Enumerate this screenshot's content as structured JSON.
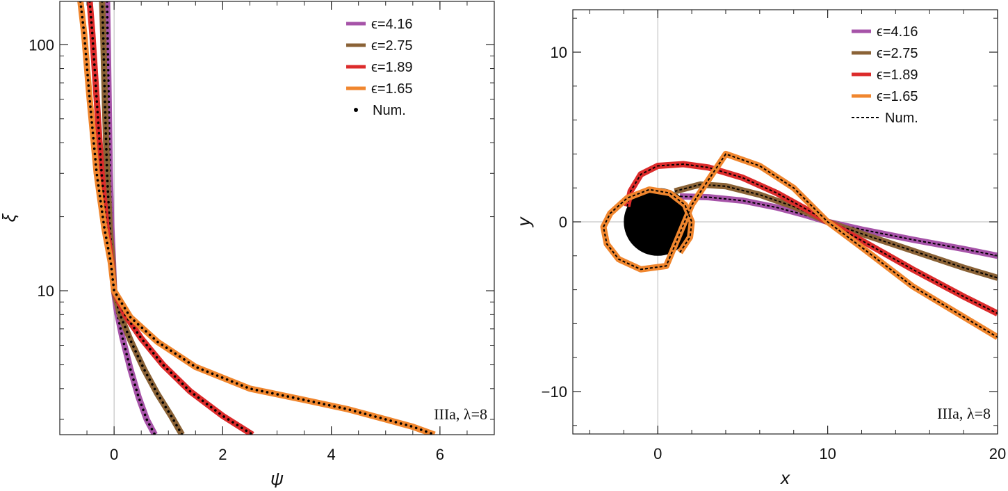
{
  "chart_data": [
    {
      "type": "line",
      "xlabel": "ψ",
      "ylabel": "ξ",
      "xlim": [
        -1,
        7
      ],
      "ylim": [
        2.6,
        150
      ],
      "yscale": "log",
      "x_ticks": [
        "0",
        "2",
        "4",
        "6"
      ],
      "y_ticks": [
        "10",
        "100"
      ],
      "legend_position": "top-right",
      "legend": [
        "ϵ=4.16",
        "ϵ=2.75",
        "ϵ=1.89",
        "ϵ=1.65",
        "Num."
      ],
      "annotation": "IIIa, λ=8",
      "series": [
        {
          "name": "ϵ=4.16",
          "color": "#a653a8",
          "x": [
            -0.13,
            -0.12,
            -0.1,
            -0.08,
            -0.05,
            -0.02,
            0,
            0.05,
            0.15,
            0.3,
            0.45,
            0.6,
            0.75
          ],
          "y": [
            150,
            110,
            60,
            30,
            18,
            13,
            10,
            8.3,
            6.5,
            4.8,
            3.7,
            3.0,
            2.6
          ]
        },
        {
          "name": "ϵ=2.75",
          "color": "#8a6236",
          "x": [
            -0.22,
            -0.2,
            -0.17,
            -0.13,
            -0.08,
            -0.03,
            0,
            0.1,
            0.3,
            0.55,
            0.8,
            1.05,
            1.25
          ],
          "y": [
            150,
            110,
            60,
            30,
            18,
            13,
            10,
            8.1,
            6.3,
            4.8,
            3.8,
            3.1,
            2.6
          ]
        },
        {
          "name": "ϵ=1.89",
          "color": "#dc2b2b",
          "x": [
            -0.45,
            -0.4,
            -0.32,
            -0.23,
            -0.14,
            -0.05,
            0,
            0.2,
            0.5,
            0.9,
            1.4,
            2.0,
            2.55
          ],
          "y": [
            150,
            110,
            60,
            30,
            18,
            13,
            10,
            8.0,
            6.4,
            5.0,
            3.9,
            3.1,
            2.6
          ]
        },
        {
          "name": "ϵ=1.65",
          "color": "#f0862e",
          "x": [
            -0.62,
            -0.55,
            -0.45,
            -0.32,
            -0.18,
            -0.06,
            0,
            0.3,
            0.8,
            1.5,
            2.5,
            3.5,
            4.3,
            5.0,
            5.5,
            5.9
          ],
          "y": [
            150,
            110,
            60,
            30,
            18,
            13,
            10,
            7.8,
            6.2,
            4.9,
            4.0,
            3.6,
            3.3,
            3.0,
            2.8,
            2.6
          ]
        }
      ]
    },
    {
      "type": "line",
      "xlabel": "x",
      "ylabel": "y",
      "xlim": [
        -5,
        20
      ],
      "ylim": [
        -12.5,
        12.5
      ],
      "x_ticks": [
        "0",
        "10",
        "20"
      ],
      "y_ticks": [
        "−10",
        "0",
        "10"
      ],
      "legend_position": "top-right",
      "legend": [
        "ϵ=4.16",
        "ϵ=2.75",
        "ϵ=1.89",
        "ϵ=1.65",
        "Num."
      ],
      "annotation": "IIIa, λ=8",
      "black_hole": {
        "x": 0,
        "y": 0,
        "radius": 2
      },
      "series": [
        {
          "name": "ϵ=4.16",
          "color": "#a653a8",
          "x": [
            1.3,
            3,
            5,
            7,
            8.5,
            10,
            12,
            15,
            18,
            20
          ],
          "y": [
            1.5,
            1.45,
            1.25,
            0.85,
            0.45,
            0,
            -0.45,
            -1.05,
            -1.6,
            -2.0
          ]
        },
        {
          "name": "ϵ=2.75",
          "color": "#8a6236",
          "x": [
            1.0,
            2.5,
            4,
            6,
            8,
            10,
            12,
            15,
            18,
            20
          ],
          "y": [
            1.8,
            2.2,
            2.1,
            1.6,
            0.9,
            0,
            -0.7,
            -1.7,
            -2.7,
            -3.3
          ]
        },
        {
          "name": "ϵ=1.89",
          "color": "#dc2b2b",
          "x": [
            -1.8,
            -1.6,
            -1.0,
            0,
            1.5,
            3,
            5,
            7,
            9,
            10,
            12,
            15,
            18,
            20
          ],
          "y": [
            0.9,
            1.8,
            2.8,
            3.3,
            3.4,
            3.2,
            2.6,
            1.7,
            0.6,
            0,
            -1.1,
            -2.8,
            -4.4,
            -5.4
          ]
        },
        {
          "name": "ϵ=1.65",
          "color": "#f0862e",
          "x": [
            1.3,
            1.9,
            2.0,
            1.6,
            0.7,
            -0.5,
            -1.8,
            -2.8,
            -3.2,
            -3.0,
            -2.3,
            -1.0,
            0.5,
            2,
            4,
            6,
            8,
            10,
            12,
            15,
            18,
            20
          ],
          "y": [
            -1.8,
            -0.9,
            0,
            1.0,
            1.7,
            1.9,
            1.4,
            0.5,
            -0.3,
            -1.3,
            -2.2,
            -2.8,
            -2.6,
            1.0,
            4.0,
            3.3,
            2.0,
            0,
            -1.5,
            -3.8,
            -5.6,
            -6.8
          ]
        }
      ]
    }
  ]
}
